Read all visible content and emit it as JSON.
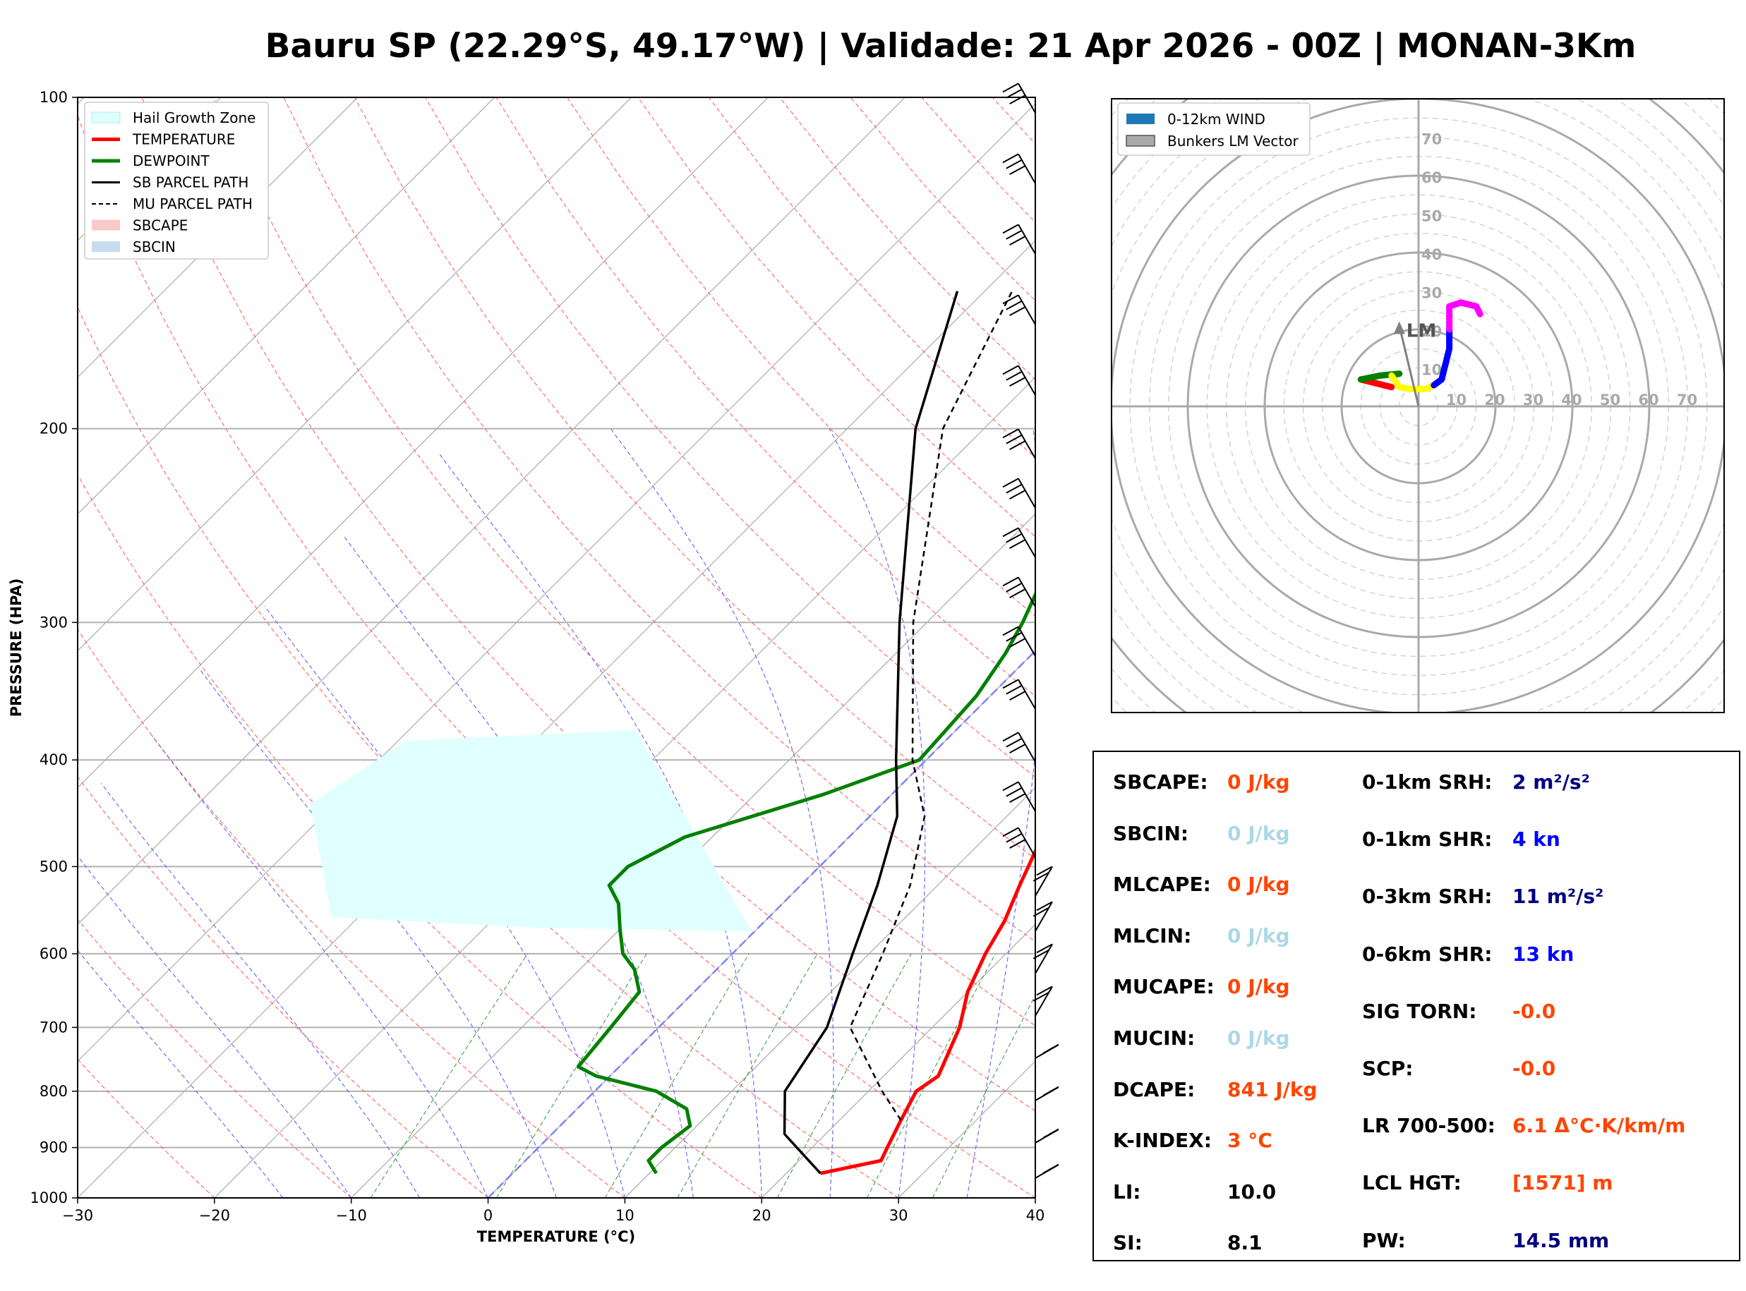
{
  "title": "Bauru SP (22.29°S, 49.17°W) | Validade: 21 Apr 2026 - 00Z | MONAN-3Km",
  "colors": {
    "temperature": "#ff0000",
    "dewpoint": "#008000",
    "hail_zone": "#e0ffff",
    "orange_value": "#ff4500",
    "lightblue_value": "#add8e6",
    "navy_value": "#000080",
    "blue_value": "#0000ff"
  },
  "chart_data": [
    {
      "type": "line",
      "name": "skew-t",
      "xlabel": "TEMPERATURE (°C)",
      "ylabel": "PRESSURE (HPA)",
      "xlim": [
        -30,
        40
      ],
      "ylim": [
        1000,
        100
      ],
      "y_scale": "log",
      "xticks": [
        "−30",
        "−20",
        "−10",
        "0",
        "10",
        "20",
        "30",
        "40"
      ],
      "yticks": [
        "100",
        "200",
        "300",
        "400",
        "500",
        "600",
        "700",
        "800",
        "900",
        "1000"
      ],
      "grid": true,
      "legend_position": "top-left",
      "legend": [
        "Hail Growth Zone",
        "TEMPERATURE",
        "DEWPOINT",
        "SB PARCEL PATH",
        "MU PARCEL PATH",
        "SBCAPE",
        "SBCIN"
      ],
      "series": [
        {
          "name": "TEMPERATURE",
          "points": [
            [
              22.5,
              950
            ],
            [
              26,
              925
            ],
            [
              25.5,
              900
            ],
            [
              24.5,
              850
            ],
            [
              23.5,
              800
            ],
            [
              24,
              775
            ],
            [
              22,
              700
            ],
            [
              20,
              650
            ],
            [
              18.5,
              600
            ],
            [
              17.5,
              560
            ],
            [
              16,
              520
            ],
            [
              14.5,
              480
            ],
            [
              12,
              440
            ],
            [
              9.5,
              400
            ],
            [
              8.5,
              350
            ],
            [
              7.5,
              320
            ],
            [
              6.5,
              300
            ],
            [
              4.5,
              260
            ],
            [
              2,
              230
            ],
            [
              -2,
              200
            ],
            [
              -4,
              180
            ],
            [
              -5.5,
              165
            ],
            [
              -6.5,
              155
            ],
            [
              -6,
              140
            ],
            [
              -3.5,
              125
            ],
            [
              0,
              110
            ],
            [
              2,
              100
            ]
          ]
        },
        {
          "name": "DEWPOINT",
          "points": [
            [
              10.5,
              950
            ],
            [
              9,
              925
            ],
            [
              9,
              900
            ],
            [
              9.5,
              860
            ],
            [
              8,
              830
            ],
            [
              4.5,
              800
            ],
            [
              -1,
              775
            ],
            [
              -3,
              760
            ],
            [
              -3.5,
              700
            ],
            [
              -4,
              650
            ],
            [
              -6,
              620
            ],
            [
              -8,
              600
            ],
            [
              -10,
              570
            ],
            [
              -12,
              540
            ],
            [
              -14,
              520
            ],
            [
              -14,
              500
            ],
            [
              -12,
              470
            ],
            [
              -5,
              430
            ],
            [
              -0.5,
              400
            ],
            [
              -1,
              350
            ],
            [
              -2,
              320
            ],
            [
              -3,
              300
            ],
            [
              -5,
              270
            ],
            [
              -7.5,
              240
            ],
            [
              -9,
              220
            ],
            [
              -10,
              200
            ],
            [
              -10.5,
              180
            ],
            [
              -11,
              160
            ],
            [
              -11,
              150
            ],
            [
              -9.5,
              125
            ],
            [
              -9,
              110
            ],
            [
              -8.5,
              100
            ]
          ]
        },
        {
          "name": "SB PARCEL PATH",
          "points": [
            [
              22.5,
              950
            ],
            [
              17,
              875
            ],
            [
              13.9,
              800
            ],
            [
              12.3,
              700
            ],
            [
              8.8,
              600
            ],
            [
              5.6,
              520
            ],
            [
              2,
              450
            ],
            [
              -2.2,
              400
            ],
            [
              -12,
              300
            ],
            [
              -25,
              200
            ],
            [
              -32,
              150
            ]
          ]
        },
        {
          "name": "MU PARCEL PATH",
          "points": [
            [
              24.5,
              850
            ],
            [
              21,
              800
            ],
            [
              14,
              700
            ],
            [
              11,
              600
            ],
            [
              8,
              520
            ],
            [
              4,
              450
            ],
            [
              -1,
              400
            ],
            [
              -11,
              300
            ],
            [
              -23,
              200
            ],
            [
              -28,
              150
            ]
          ]
        }
      ],
      "winds": "barbs on right margin"
    },
    {
      "type": "line",
      "name": "hodograph",
      "rings": [
        "10",
        "20",
        "30",
        "40",
        "50",
        "60",
        "70"
      ],
      "legend": [
        "0-12km WIND",
        "Bunkers LM Vector"
      ],
      "legend_position": "top-left",
      "lm_label": "LM",
      "segments": [
        {
          "color": "#ff0000",
          "points": [
            [
              -7,
              5
            ],
            [
              -15,
              7
            ]
          ]
        },
        {
          "color": "#008000",
          "points": [
            [
              -15,
              7
            ],
            [
              -10,
              8
            ],
            [
              -5,
              8.5
            ],
            [
              -7,
              8
            ]
          ]
        },
        {
          "color": "#ffff00",
          "points": [
            [
              -7,
              8
            ],
            [
              -5,
              5
            ],
            [
              -2,
              4.5
            ],
            [
              2,
              4.5
            ],
            [
              4,
              5.5
            ]
          ]
        },
        {
          "color": "#0000ff",
          "points": [
            [
              4,
              5.5
            ],
            [
              6,
              7
            ],
            [
              7,
              11
            ],
            [
              8,
              15
            ],
            [
              8,
              20
            ]
          ]
        },
        {
          "color": "#ff00ff",
          "points": [
            [
              8,
              20
            ],
            [
              8,
              26
            ],
            [
              11,
              27
            ],
            [
              15,
              26
            ],
            [
              16,
              24
            ]
          ]
        }
      ],
      "lm_vector": [
        -5,
        21
      ]
    }
  ],
  "params": {
    "left": [
      {
        "label": "SBCAPE:",
        "value": "0 J/kg",
        "color": "#ff4500"
      },
      {
        "label": "SBCIN:",
        "value": "0 J/kg",
        "color": "#add8e6"
      },
      {
        "label": "MLCAPE:",
        "value": "0 J/kg",
        "color": "#ff4500"
      },
      {
        "label": "MLCIN:",
        "value": "0 J/kg",
        "color": "#add8e6"
      },
      {
        "label": "MUCAPE:",
        "value": "0 J/kg",
        "color": "#ff4500"
      },
      {
        "label": "MUCIN:",
        "value": "0 J/kg",
        "color": "#add8e6"
      },
      {
        "label": "DCAPE:",
        "value": "841 J/kg",
        "color": "#ff4500"
      },
      {
        "label": "K-INDEX:",
        "value": "3 °C",
        "color": "#ff4500"
      },
      {
        "label": "LI:",
        "value": "10.0",
        "color": "#000000"
      },
      {
        "label": "SI:",
        "value": "8.1",
        "color": "#000000"
      }
    ],
    "right": [
      {
        "label": "0-1km SRH:",
        "value": "2 m²/s²",
        "color": "#000080"
      },
      {
        "label": "0-1km SHR:",
        "value": "4 kn",
        "color": "#0000ff"
      },
      {
        "label": "0-3km SRH:",
        "value": "11 m²/s²",
        "color": "#000080"
      },
      {
        "label": "0-6km SHR:",
        "value": "13 kn",
        "color": "#0000ff"
      },
      {
        "label": "SIG TORN:",
        "value": "-0.0",
        "color": "#ff4500"
      },
      {
        "label": "SCP:",
        "value": "-0.0",
        "color": "#ff4500"
      },
      {
        "label": "LR 700-500:",
        "value": "6.1 Δ°C·K/km/m",
        "color": "#ff4500"
      },
      {
        "label": "LCL HGT:",
        "value": "[1571] m",
        "color": "#ff4500"
      },
      {
        "label": "PW:",
        "value": "14.5 mm",
        "color": "#000080"
      }
    ]
  }
}
